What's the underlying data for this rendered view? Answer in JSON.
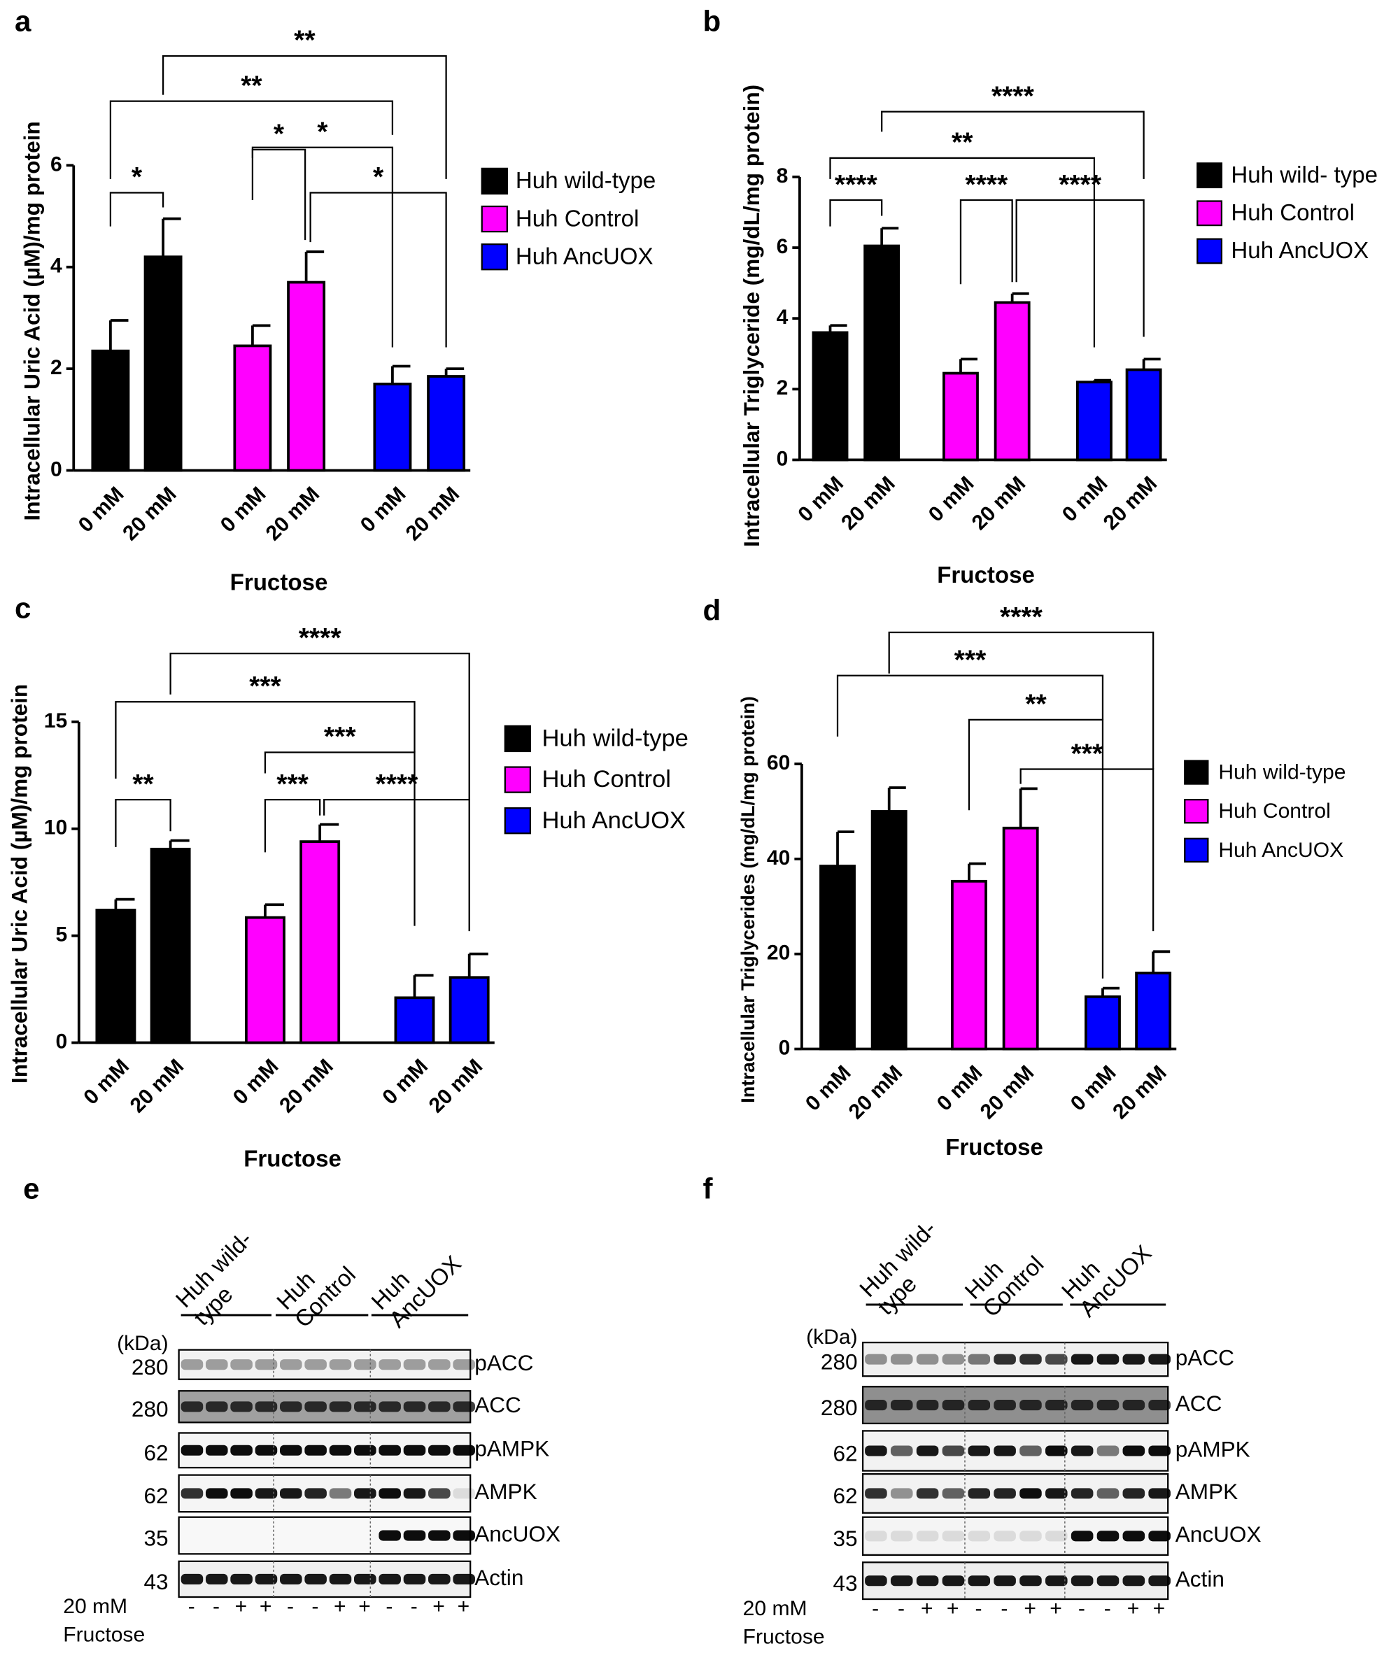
{
  "chart_data": [
    {
      "type": "bar",
      "panel": "a",
      "ylabel": "Intracellular Uric Acid (µM)/mg protein",
      "xlabel": "Fructose",
      "categories": [
        "0 mM",
        "20 mM"
      ],
      "ylim": [
        0,
        6
      ],
      "yticks": [
        0,
        2,
        4,
        6
      ],
      "series": [
        {
          "name": "Huh wild-type",
          "color": "#000000",
          "values": [
            2.35,
            4.2
          ],
          "errors": [
            0.6,
            0.75
          ]
        },
        {
          "name": "Huh Control",
          "color": "#ff00ff",
          "values": [
            2.45,
            3.7
          ],
          "errors": [
            0.4,
            0.6
          ]
        },
        {
          "name": "Huh AncUOX",
          "color": "#0000ff",
          "values": [
            1.7,
            1.85
          ],
          "errors": [
            0.35,
            0.15
          ]
        }
      ],
      "annotations": [
        "*",
        "*",
        "*",
        "*",
        "**",
        "**"
      ]
    },
    {
      "type": "bar",
      "panel": "b",
      "ylabel": "Intracellular Triglyceride (mg/dL/mg protein)",
      "xlabel": "Fructose",
      "categories": [
        "0 mM",
        "20 mM"
      ],
      "ylim": [
        0,
        8
      ],
      "yticks": [
        0,
        2,
        4,
        6,
        8
      ],
      "series": [
        {
          "name": "Huh wild- type",
          "color": "#000000",
          "values": [
            3.6,
            6.05
          ],
          "errors": [
            0.2,
            0.5
          ]
        },
        {
          "name": "Huh Control",
          "color": "#ff00ff",
          "values": [
            2.45,
            4.45
          ],
          "errors": [
            0.4,
            0.25
          ]
        },
        {
          "name": "Huh AncUOX",
          "color": "#0000ff",
          "values": [
            2.2,
            2.55
          ],
          "errors": [
            0.05,
            0.3
          ]
        }
      ],
      "annotations": [
        "****",
        "****",
        "****",
        "**",
        "****"
      ]
    },
    {
      "type": "bar",
      "panel": "c",
      "ylabel": "Intracellular Uric Acid (µM)/mg protein",
      "xlabel": "Fructose",
      "categories": [
        "0 mM",
        "20 mM"
      ],
      "ylim": [
        0,
        15
      ],
      "yticks": [
        0,
        5,
        10,
        15
      ],
      "series": [
        {
          "name": "Huh wild-type",
          "color": "#000000",
          "values": [
            6.2,
            9.05
          ],
          "errors": [
            0.5,
            0.4
          ]
        },
        {
          "name": "Huh Control",
          "color": "#ff00ff",
          "values": [
            5.85,
            9.4
          ],
          "errors": [
            0.6,
            0.8
          ]
        },
        {
          "name": "Huh AncUOX",
          "color": "#0000ff",
          "values": [
            2.1,
            3.05
          ],
          "errors": [
            1.05,
            1.1
          ]
        }
      ],
      "annotations": [
        "**",
        "***",
        "****",
        "***",
        "***",
        "****"
      ]
    },
    {
      "type": "bar",
      "panel": "d",
      "ylabel": "Intracellular Triglycerides (mg/dL/mg protein)",
      "xlabel": "Fructose",
      "categories": [
        "0 mM",
        "20 mM"
      ],
      "ylim": [
        0,
        60
      ],
      "yticks": [
        0,
        20,
        40,
        60
      ],
      "series": [
        {
          "name": "Huh wild-type",
          "color": "#000000",
          "values": [
            38.5,
            50
          ],
          "errors": [
            7.2,
            5
          ]
        },
        {
          "name": "Huh Control",
          "color": "#ff00ff",
          "values": [
            35.3,
            46.5
          ],
          "errors": [
            3.7,
            8.3
          ]
        },
        {
          "name": "Huh AncUOX",
          "color": "#0000ff",
          "values": [
            11,
            16
          ],
          "errors": [
            1.8,
            4.5
          ]
        }
      ],
      "annotations": [
        "***",
        "**",
        "***",
        "****"
      ]
    }
  ],
  "blots": [
    {
      "panel": "e",
      "lane_groups": [
        [
          "Huh wild-",
          "type"
        ],
        [
          "Huh",
          "Control"
        ],
        [
          "Huh",
          "AncUOX"
        ]
      ],
      "kda_header": "(kDa)",
      "rows": [
        {
          "kda": 280,
          "name": "pACC"
        },
        {
          "kda": 280,
          "name": "ACC"
        },
        {
          "kda": 62,
          "name": "pAMPK"
        },
        {
          "kda": 62,
          "name": "AMPK"
        },
        {
          "kda": 35,
          "name": "AncUOX"
        },
        {
          "kda": 43,
          "name": "Actin"
        }
      ],
      "treatment": [
        "20 mM",
        "Fructose"
      ],
      "lanes": [
        "-",
        "-",
        "+",
        "+",
        "-",
        "-",
        "+",
        "+",
        "-",
        "-",
        "+",
        "+"
      ]
    },
    {
      "panel": "f",
      "lane_groups": [
        [
          "Huh wild-",
          "type"
        ],
        [
          "Huh",
          "Control"
        ],
        [
          "Huh",
          "AncUOX"
        ]
      ],
      "kda_header": "(kDa)",
      "rows": [
        {
          "kda": 280,
          "name": "pACC"
        },
        {
          "kda": 280,
          "name": "ACC"
        },
        {
          "kda": 62,
          "name": "pAMPK"
        },
        {
          "kda": 62,
          "name": "AMPK"
        },
        {
          "kda": 35,
          "name": "AncUOX"
        },
        {
          "kda": 43,
          "name": "Actin"
        }
      ],
      "treatment": [
        "20 mM",
        "Fructose"
      ],
      "lanes": [
        "-",
        "-",
        "+",
        "+",
        "-",
        "-",
        "+",
        "+",
        "-",
        "-",
        "+",
        "+"
      ]
    }
  ]
}
